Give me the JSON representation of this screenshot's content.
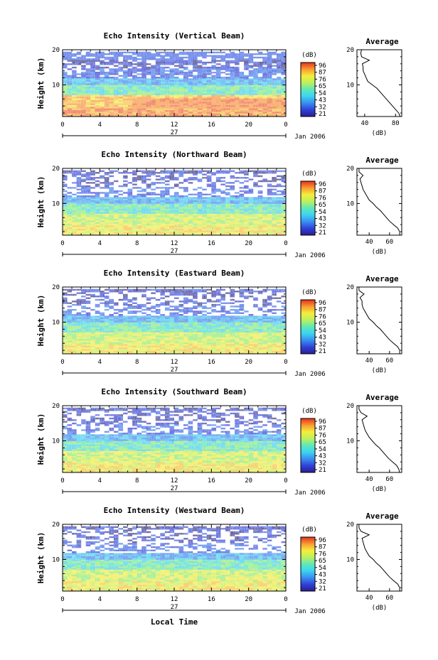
{
  "chart_data": {
    "type": "heatmap",
    "panels": [
      {
        "title": "Echo Intensity (Vertical Beam)",
        "avg_xticks": [
          "40",
          "80"
        ],
        "avg_xlim": [
          30,
          88
        ],
        "profile": [
          [
            1,
            86
          ],
          [
            2,
            84
          ],
          [
            3,
            80
          ],
          [
            4,
            76
          ],
          [
            5,
            72
          ],
          [
            6,
            68
          ],
          [
            7,
            64
          ],
          [
            8,
            60
          ],
          [
            9,
            56
          ],
          [
            10,
            50
          ],
          [
            11,
            44
          ],
          [
            12,
            42
          ],
          [
            13,
            40
          ],
          [
            14,
            38
          ],
          [
            15,
            38
          ],
          [
            16,
            37
          ],
          [
            17,
            46
          ],
          [
            18,
            36
          ],
          [
            19,
            35
          ],
          [
            20,
            36
          ]
        ]
      },
      {
        "title": "Echo Intensity (Northward Beam)",
        "avg_xticks": [
          "40",
          "60"
        ],
        "avg_xlim": [
          28,
          72
        ],
        "profile": [
          [
            1,
            70
          ],
          [
            2,
            70
          ],
          [
            3,
            68
          ],
          [
            4,
            64
          ],
          [
            5,
            60
          ],
          [
            6,
            57
          ],
          [
            7,
            54
          ],
          [
            8,
            51
          ],
          [
            9,
            47
          ],
          [
            10,
            44
          ],
          [
            11,
            40
          ],
          [
            12,
            38
          ],
          [
            13,
            36
          ],
          [
            14,
            34
          ],
          [
            15,
            33
          ],
          [
            16,
            32
          ],
          [
            17,
            31
          ],
          [
            18,
            34
          ],
          [
            19,
            30
          ],
          [
            20,
            30
          ]
        ]
      },
      {
        "title": "Echo Intensity (Eastward Beam)",
        "avg_xticks": [
          "40",
          "60"
        ],
        "avg_xlim": [
          28,
          72
        ],
        "profile": [
          [
            1,
            70
          ],
          [
            2,
            70
          ],
          [
            3,
            68
          ],
          [
            4,
            64
          ],
          [
            5,
            60
          ],
          [
            6,
            57
          ],
          [
            7,
            54
          ],
          [
            8,
            51
          ],
          [
            9,
            47
          ],
          [
            10,
            44
          ],
          [
            11,
            40
          ],
          [
            12,
            38
          ],
          [
            13,
            36
          ],
          [
            14,
            34
          ],
          [
            15,
            33
          ],
          [
            16,
            33
          ],
          [
            17,
            31
          ],
          [
            18,
            35
          ],
          [
            19,
            30
          ],
          [
            20,
            30
          ]
        ]
      },
      {
        "title": "Echo Intensity (Southward Beam)",
        "avg_xticks": [
          "40",
          "60"
        ],
        "avg_xlim": [
          28,
          72
        ],
        "profile": [
          [
            1,
            70
          ],
          [
            2,
            69
          ],
          [
            3,
            67
          ],
          [
            4,
            63
          ],
          [
            5,
            59
          ],
          [
            6,
            56
          ],
          [
            7,
            53
          ],
          [
            8,
            50
          ],
          [
            9,
            46
          ],
          [
            10,
            43
          ],
          [
            11,
            40
          ],
          [
            12,
            38
          ],
          [
            13,
            36
          ],
          [
            14,
            35
          ],
          [
            15,
            34
          ],
          [
            16,
            33
          ],
          [
            17,
            38
          ],
          [
            18,
            32
          ],
          [
            19,
            30
          ],
          [
            20,
            30
          ]
        ]
      },
      {
        "title": "Echo Intensity (Westward Beam)",
        "avg_xticks": [
          "40",
          "60"
        ],
        "avg_xlim": [
          28,
          72
        ],
        "profile": [
          [
            1,
            70
          ],
          [
            2,
            70
          ],
          [
            3,
            68
          ],
          [
            4,
            64
          ],
          [
            5,
            60
          ],
          [
            6,
            57
          ],
          [
            7,
            54
          ],
          [
            8,
            51
          ],
          [
            9,
            47
          ],
          [
            10,
            44
          ],
          [
            11,
            40
          ],
          [
            12,
            38
          ],
          [
            13,
            36
          ],
          [
            14,
            35
          ],
          [
            15,
            34
          ],
          [
            16,
            33
          ],
          [
            17,
            40
          ],
          [
            18,
            32
          ],
          [
            19,
            30
          ],
          [
            20,
            30
          ]
        ]
      }
    ],
    "heights_km": [
      1,
      20
    ],
    "ylim": [
      1,
      20
    ],
    "yticks": [
      "10",
      "20"
    ],
    "ylabel": "Height (km)",
    "xticks": [
      "0",
      "4",
      "8",
      "12",
      "16",
      "20",
      "0"
    ],
    "x_range_hours": [
      0,
      24
    ],
    "day_label": "27",
    "month_label": "Jan 2006",
    "xlabel": "Local Time",
    "colorbar": {
      "unit_label": "(dB)",
      "ticks_vertical": [
        "96",
        "87",
        "76",
        "65",
        "54",
        "43",
        "32",
        "21"
      ],
      "ticks_other": [
        "96",
        "87",
        "76",
        "65",
        "54",
        "43",
        "32",
        "21"
      ]
    },
    "avg_title": "Average",
    "avg_xlabel": "(dB)",
    "avg_ylim": [
      1,
      20
    ]
  }
}
